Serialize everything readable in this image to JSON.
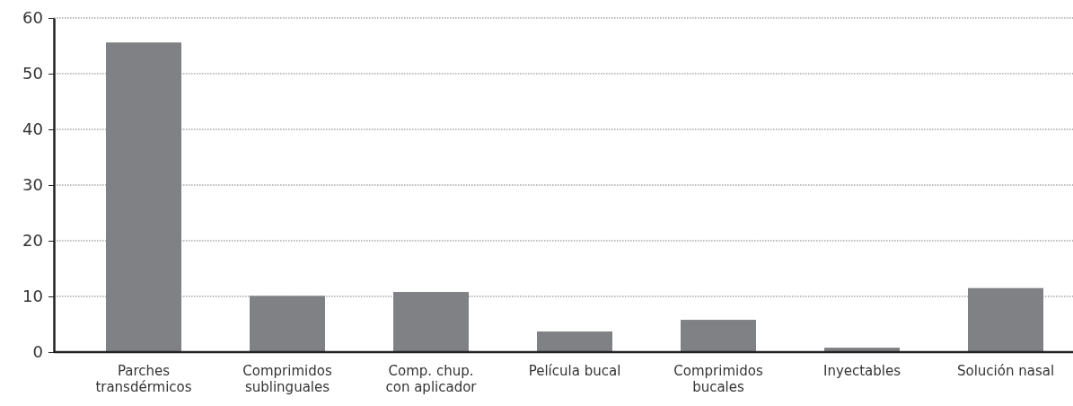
{
  "chart_data": {
    "type": "bar",
    "categories": [
      "Parches\ntransdérmicos",
      "Comprimidos\nsublinguales",
      "Comp. chup.\ncon aplicador",
      "Película bucal",
      "Comprimidos\nbucales",
      "Inyectables",
      "Solución nasal"
    ],
    "values": [
      55.6,
      10.1,
      10.8,
      3.7,
      5.8,
      0.8,
      11.5
    ],
    "color": "#808184",
    "ylim": [
      0,
      60
    ],
    "yticks": [
      0,
      10,
      20,
      30,
      40,
      50,
      60
    ],
    "grid": "y"
  }
}
